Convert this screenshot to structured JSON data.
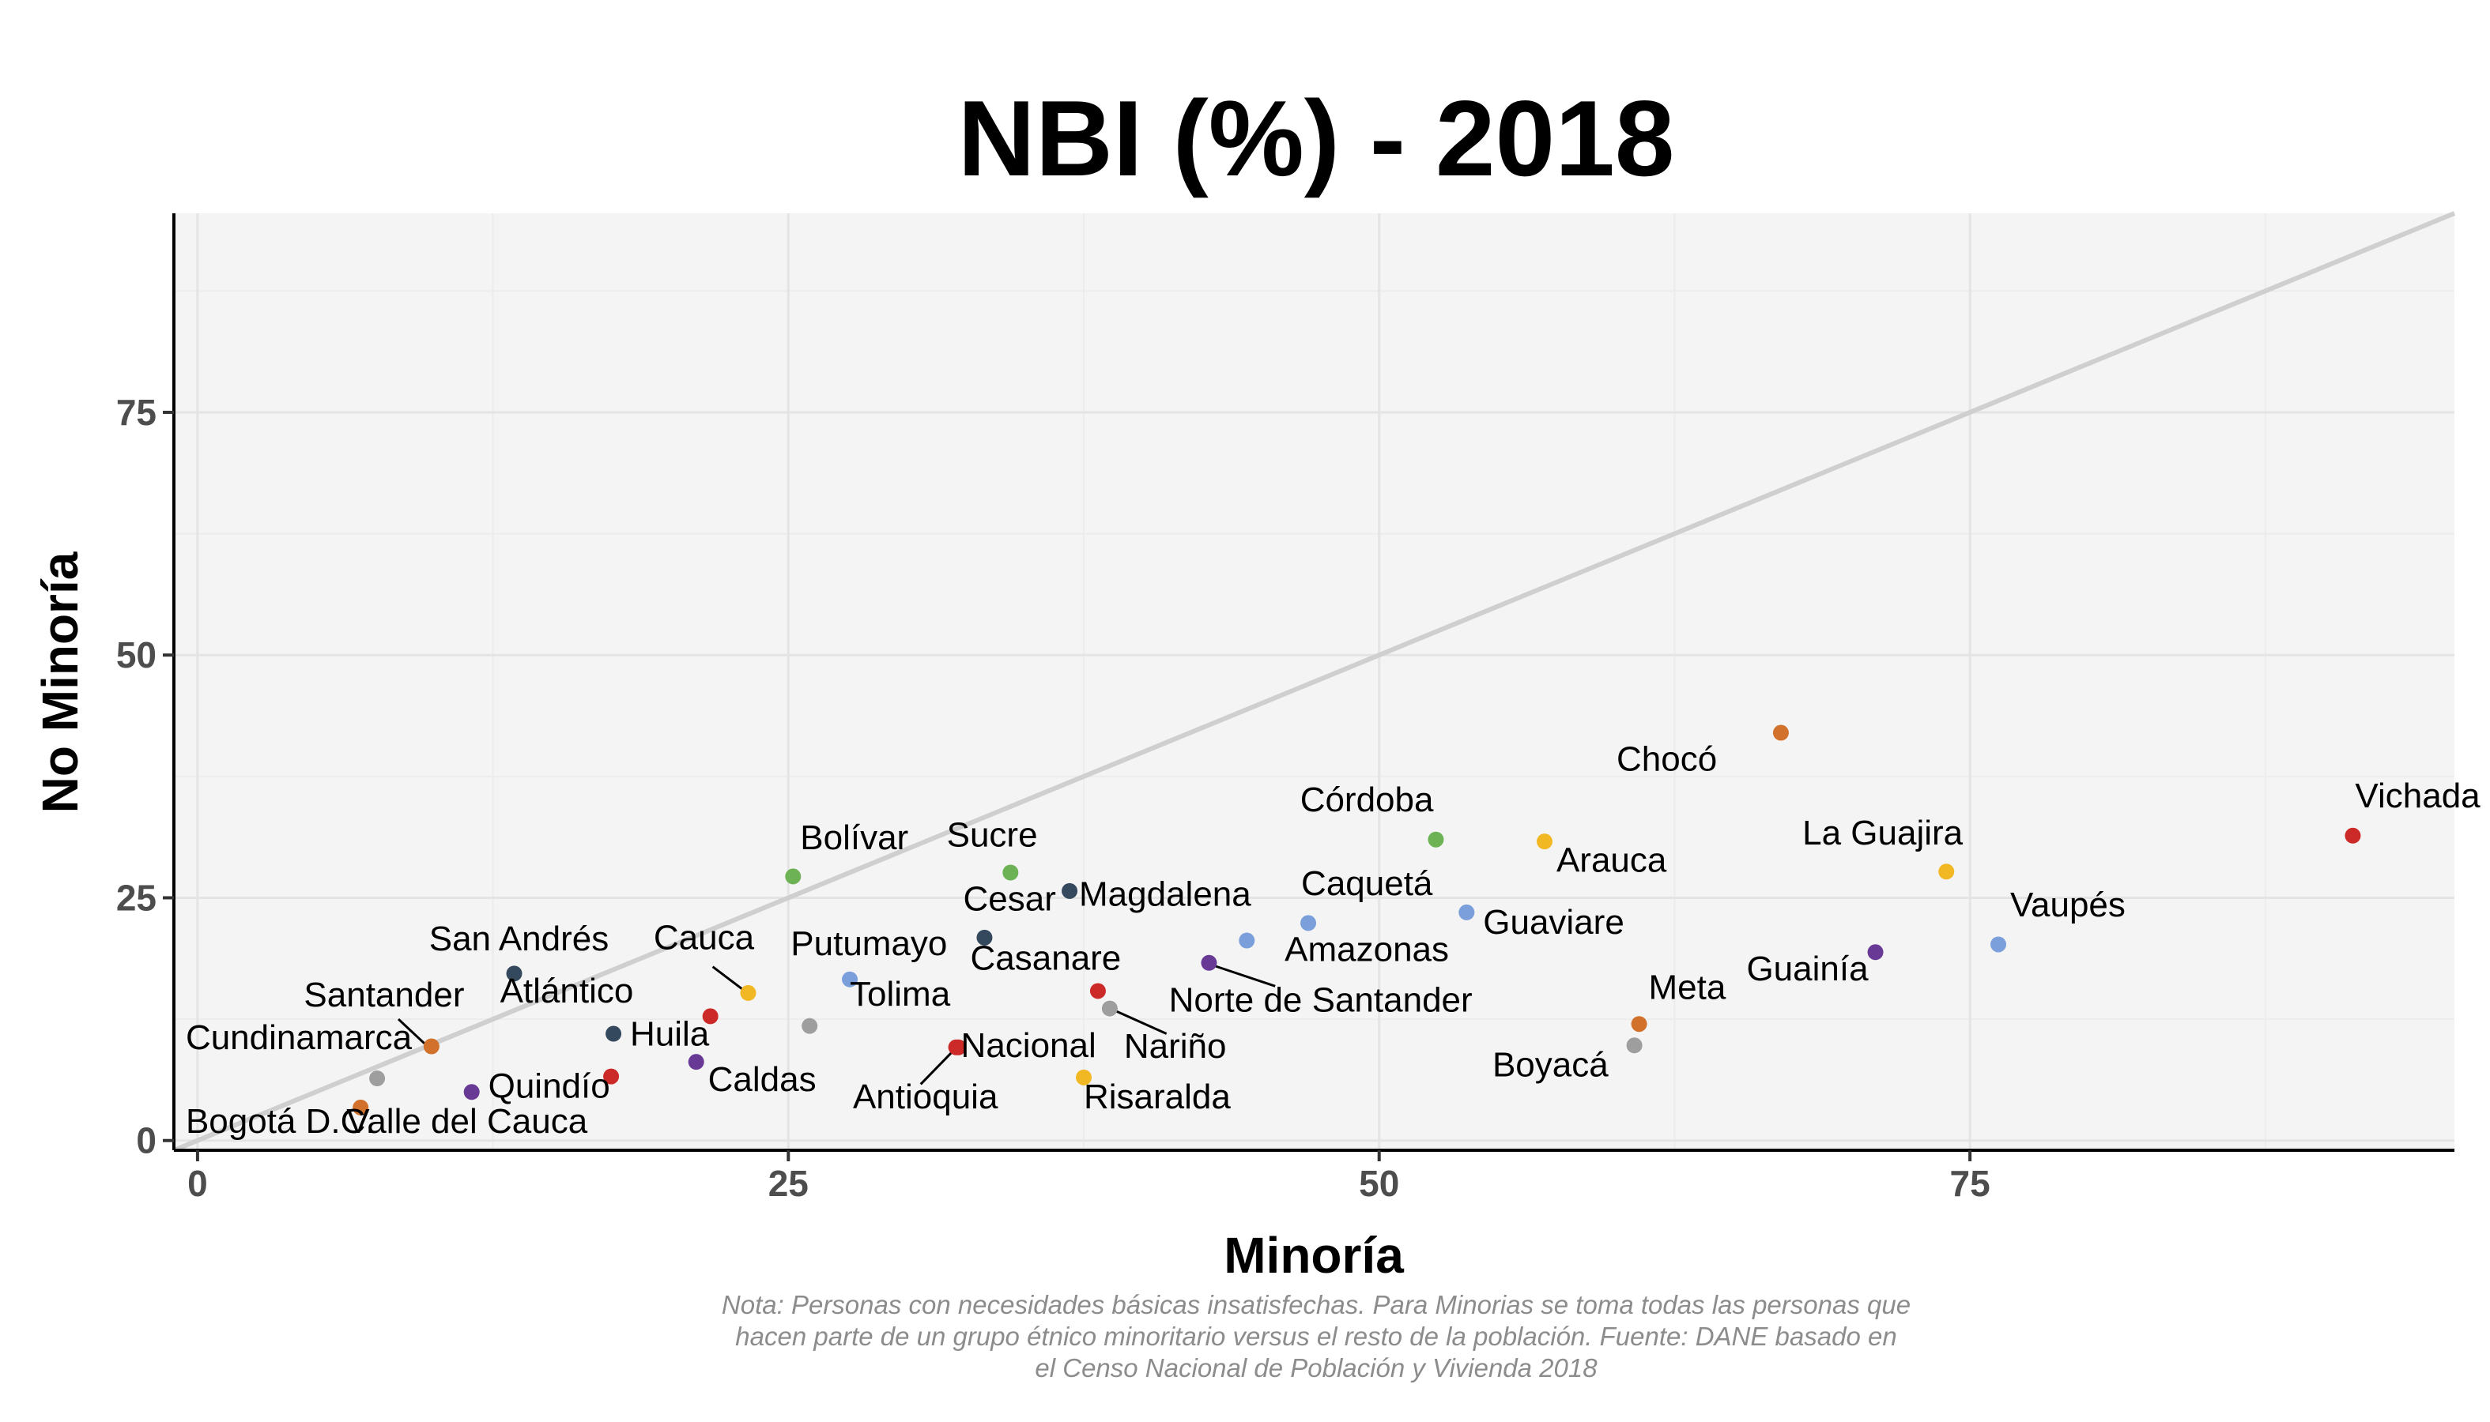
{
  "chart_data": {
    "type": "scatter",
    "title": "NBI (%) - 2018",
    "xlabel": "Minoría",
    "ylabel": "No Minoría",
    "xlim": [
      -1,
      95.5
    ],
    "ylim": [
      -1,
      95.5
    ],
    "x_ticks": [
      0,
      25,
      50,
      75
    ],
    "y_ticks": [
      0,
      25,
      50,
      75
    ],
    "grid": true,
    "reference_line": "y = x",
    "caption_lines": [
      "Nota: Personas con necesidades básicas insatisfechas. Para Minorias se toma todas las personas que",
      "hacen parte de un grupo étnico minoritario versus el resto de la población. Fuente: DANE basado en",
      "el Censo Nacional de Población y Vivienda 2018"
    ],
    "points": [
      {
        "label": "Vichada",
        "x": 91.2,
        "y": 31.4,
        "color": "#cc2a28",
        "lx": 91.3,
        "ly": 34.3,
        "anchor": "start"
      },
      {
        "label": "Chocó",
        "x": 67.0,
        "y": 42.0,
        "color": "#d2712b",
        "lx": 64.3,
        "ly": 38.1,
        "anchor": "end"
      },
      {
        "label": "Córdoba",
        "x": 52.4,
        "y": 31.0,
        "color": "#6db356",
        "lx": 52.3,
        "ly": 33.9,
        "anchor": "end"
      },
      {
        "label": "Arauca",
        "x": 57.0,
        "y": 30.8,
        "color": "#f2b824",
        "lx": 57.5,
        "ly": 27.7,
        "anchor": "start"
      },
      {
        "label": "La Guajira",
        "x": 74.0,
        "y": 27.7,
        "color": "#f2b824",
        "lx": 74.7,
        "ly": 30.5,
        "anchor": "end"
      },
      {
        "label": "Vaupés",
        "x": 76.2,
        "y": 20.2,
        "color": "#7a9fdb",
        "lx": 76.7,
        "ly": 23.1,
        "anchor": "start"
      },
      {
        "label": "Guainía",
        "x": 71.0,
        "y": 19.4,
        "color": "#683a96",
        "lx": 70.7,
        "ly": 16.5,
        "anchor": "end"
      },
      {
        "label": "Caquetá",
        "x": 47.0,
        "y": 22.4,
        "color": "#7a9fdb",
        "lx": 46.7,
        "ly": 25.3,
        "anchor": "start"
      },
      {
        "label": "Guaviare",
        "x": 53.7,
        "y": 23.5,
        "color": "#7a9fdb",
        "lx": 54.4,
        "ly": 21.3,
        "anchor": "start"
      },
      {
        "label": "Amazonas",
        "x": 44.4,
        "y": 20.6,
        "color": "#7a9fdb",
        "lx": 46.0,
        "ly": 18.5,
        "anchor": "start"
      },
      {
        "label": "Norte de Santander",
        "x": 42.8,
        "y": 18.3,
        "color": "#683a96",
        "lx": 41.1,
        "ly": 13.3,
        "anchor": "start"
      },
      {
        "label": "Meta",
        "x": 61.0,
        "y": 12.0,
        "color": "#d2712b",
        "lx": 61.4,
        "ly": 14.6,
        "anchor": "start"
      },
      {
        "label": "Boyacá",
        "x": 60.8,
        "y": 9.8,
        "color": "#9e9e9e",
        "lx": 59.7,
        "ly": 6.6,
        "anchor": "end"
      },
      {
        "label": "Bolívar",
        "x": 25.2,
        "y": 27.2,
        "color": "#6db356",
        "lx": 25.5,
        "ly": 30.0,
        "anchor": "start"
      },
      {
        "label": "Sucre",
        "x": 34.4,
        "y": 27.6,
        "color": "#6db356",
        "lx": 31.7,
        "ly": 30.3,
        "anchor": "start"
      },
      {
        "label": "Magdalena",
        "x": 36.9,
        "y": 25.7,
        "color": "#34495e",
        "lx": 37.3,
        "ly": 24.2,
        "anchor": "start"
      },
      {
        "label": "Cesar",
        "x": 33.3,
        "y": 20.9,
        "color": "#34495e",
        "lx": 32.4,
        "ly": 23.7,
        "anchor": "start"
      },
      {
        "label": "Casanare",
        "x": 38.1,
        "y": 15.4,
        "color": "#cc2a28",
        "lx": 32.7,
        "ly": 17.6,
        "anchor": "start"
      },
      {
        "label": "Nariño",
        "x": 38.6,
        "y": 13.6,
        "color": "#9e9e9e",
        "lx": 39.2,
        "ly": 8.5,
        "anchor": "start"
      },
      {
        "label": "Putumayo",
        "x": 27.6,
        "y": 16.6,
        "color": "#7a9fdb",
        "lx": 25.1,
        "ly": 19.1,
        "anchor": "start"
      },
      {
        "label": "Tolima",
        "x": 25.9,
        "y": 11.8,
        "color": "#9e9e9e",
        "lx": 27.6,
        "ly": 13.9,
        "anchor": "start"
      },
      {
        "label": "Cauca",
        "x": 23.3,
        "y": 15.2,
        "color": "#f2b824",
        "lx": 19.3,
        "ly": 19.7,
        "anchor": "start"
      },
      {
        "label": "Caldas",
        "x": 21.1,
        "y": 8.1,
        "color": "#683a96",
        "lx": 21.6,
        "ly": 5.1,
        "anchor": "start"
      },
      {
        "label": "Huila",
        "x": 17.6,
        "y": 11.0,
        "color": "#34495e",
        "lx": 18.3,
        "ly": 9.8,
        "anchor": "start"
      },
      {
        "label": "Atlántico",
        "x": 21.7,
        "y": 12.8,
        "color": "#cc2a28",
        "lx": 12.8,
        "ly": 14.2,
        "anchor": "start"
      },
      {
        "label": "San Andrés",
        "x": 13.4,
        "y": 17.2,
        "color": "#34495e",
        "lx": 13.6,
        "ly": 19.6,
        "anchor": "middle"
      },
      {
        "label": "Santander",
        "x": 9.9,
        "y": 9.7,
        "color": "#d2712b",
        "lx": 4.5,
        "ly": 13.8,
        "anchor": "start"
      },
      {
        "label": "Cundinamarca",
        "x": 7.6,
        "y": 6.4,
        "color": "#9e9e9e",
        "lx": -0.5,
        "ly": 9.4,
        "anchor": "start"
      },
      {
        "label": "Quindío",
        "x": 11.6,
        "y": 5.0,
        "color": "#683a96",
        "lx": 12.3,
        "ly": 4.4,
        "anchor": "start"
      },
      {
        "label": "Antioquia",
        "x": 32.1,
        "y": 9.6,
        "color": "#cc2a28",
        "lx": 30.8,
        "ly": 3.3,
        "anchor": "middle"
      },
      {
        "label": "Nacional",
        "x": 32.2,
        "y": 9.6,
        "color": "#cc2a28",
        "lx": 32.3,
        "ly": 8.6,
        "anchor": "start"
      },
      {
        "label": "Risaralda",
        "x": 37.5,
        "y": 6.5,
        "color": "#f2b824",
        "lx": 37.5,
        "ly": 3.3,
        "anchor": "start"
      },
      {
        "label": "Bogotá D.C.",
        "x": 6.9,
        "y": 3.4,
        "color": "#d2712b",
        "lx": -0.5,
        "ly": 0.8,
        "anchor": "start"
      },
      {
        "label": "Valle del Cauca",
        "x": 17.5,
        "y": 6.6,
        "color": "#cc2a28",
        "lx": 6.3,
        "ly": 0.8,
        "anchor": "start"
      }
    ],
    "leader_lines": [
      {
        "from": [
          9.6,
          10.0
        ],
        "to": [
          8.5,
          12.5
        ]
      },
      {
        "from": [
          23.1,
          15.5
        ],
        "to": [
          21.8,
          17.9
        ]
      },
      {
        "from": [
          42.9,
          18.1
        ],
        "to": [
          45.6,
          15.9
        ]
      },
      {
        "from": [
          38.8,
          13.4
        ],
        "to": [
          41.0,
          11.0
        ]
      },
      {
        "from": [
          32.0,
          9.3
        ],
        "to": [
          30.6,
          5.8
        ]
      }
    ]
  }
}
